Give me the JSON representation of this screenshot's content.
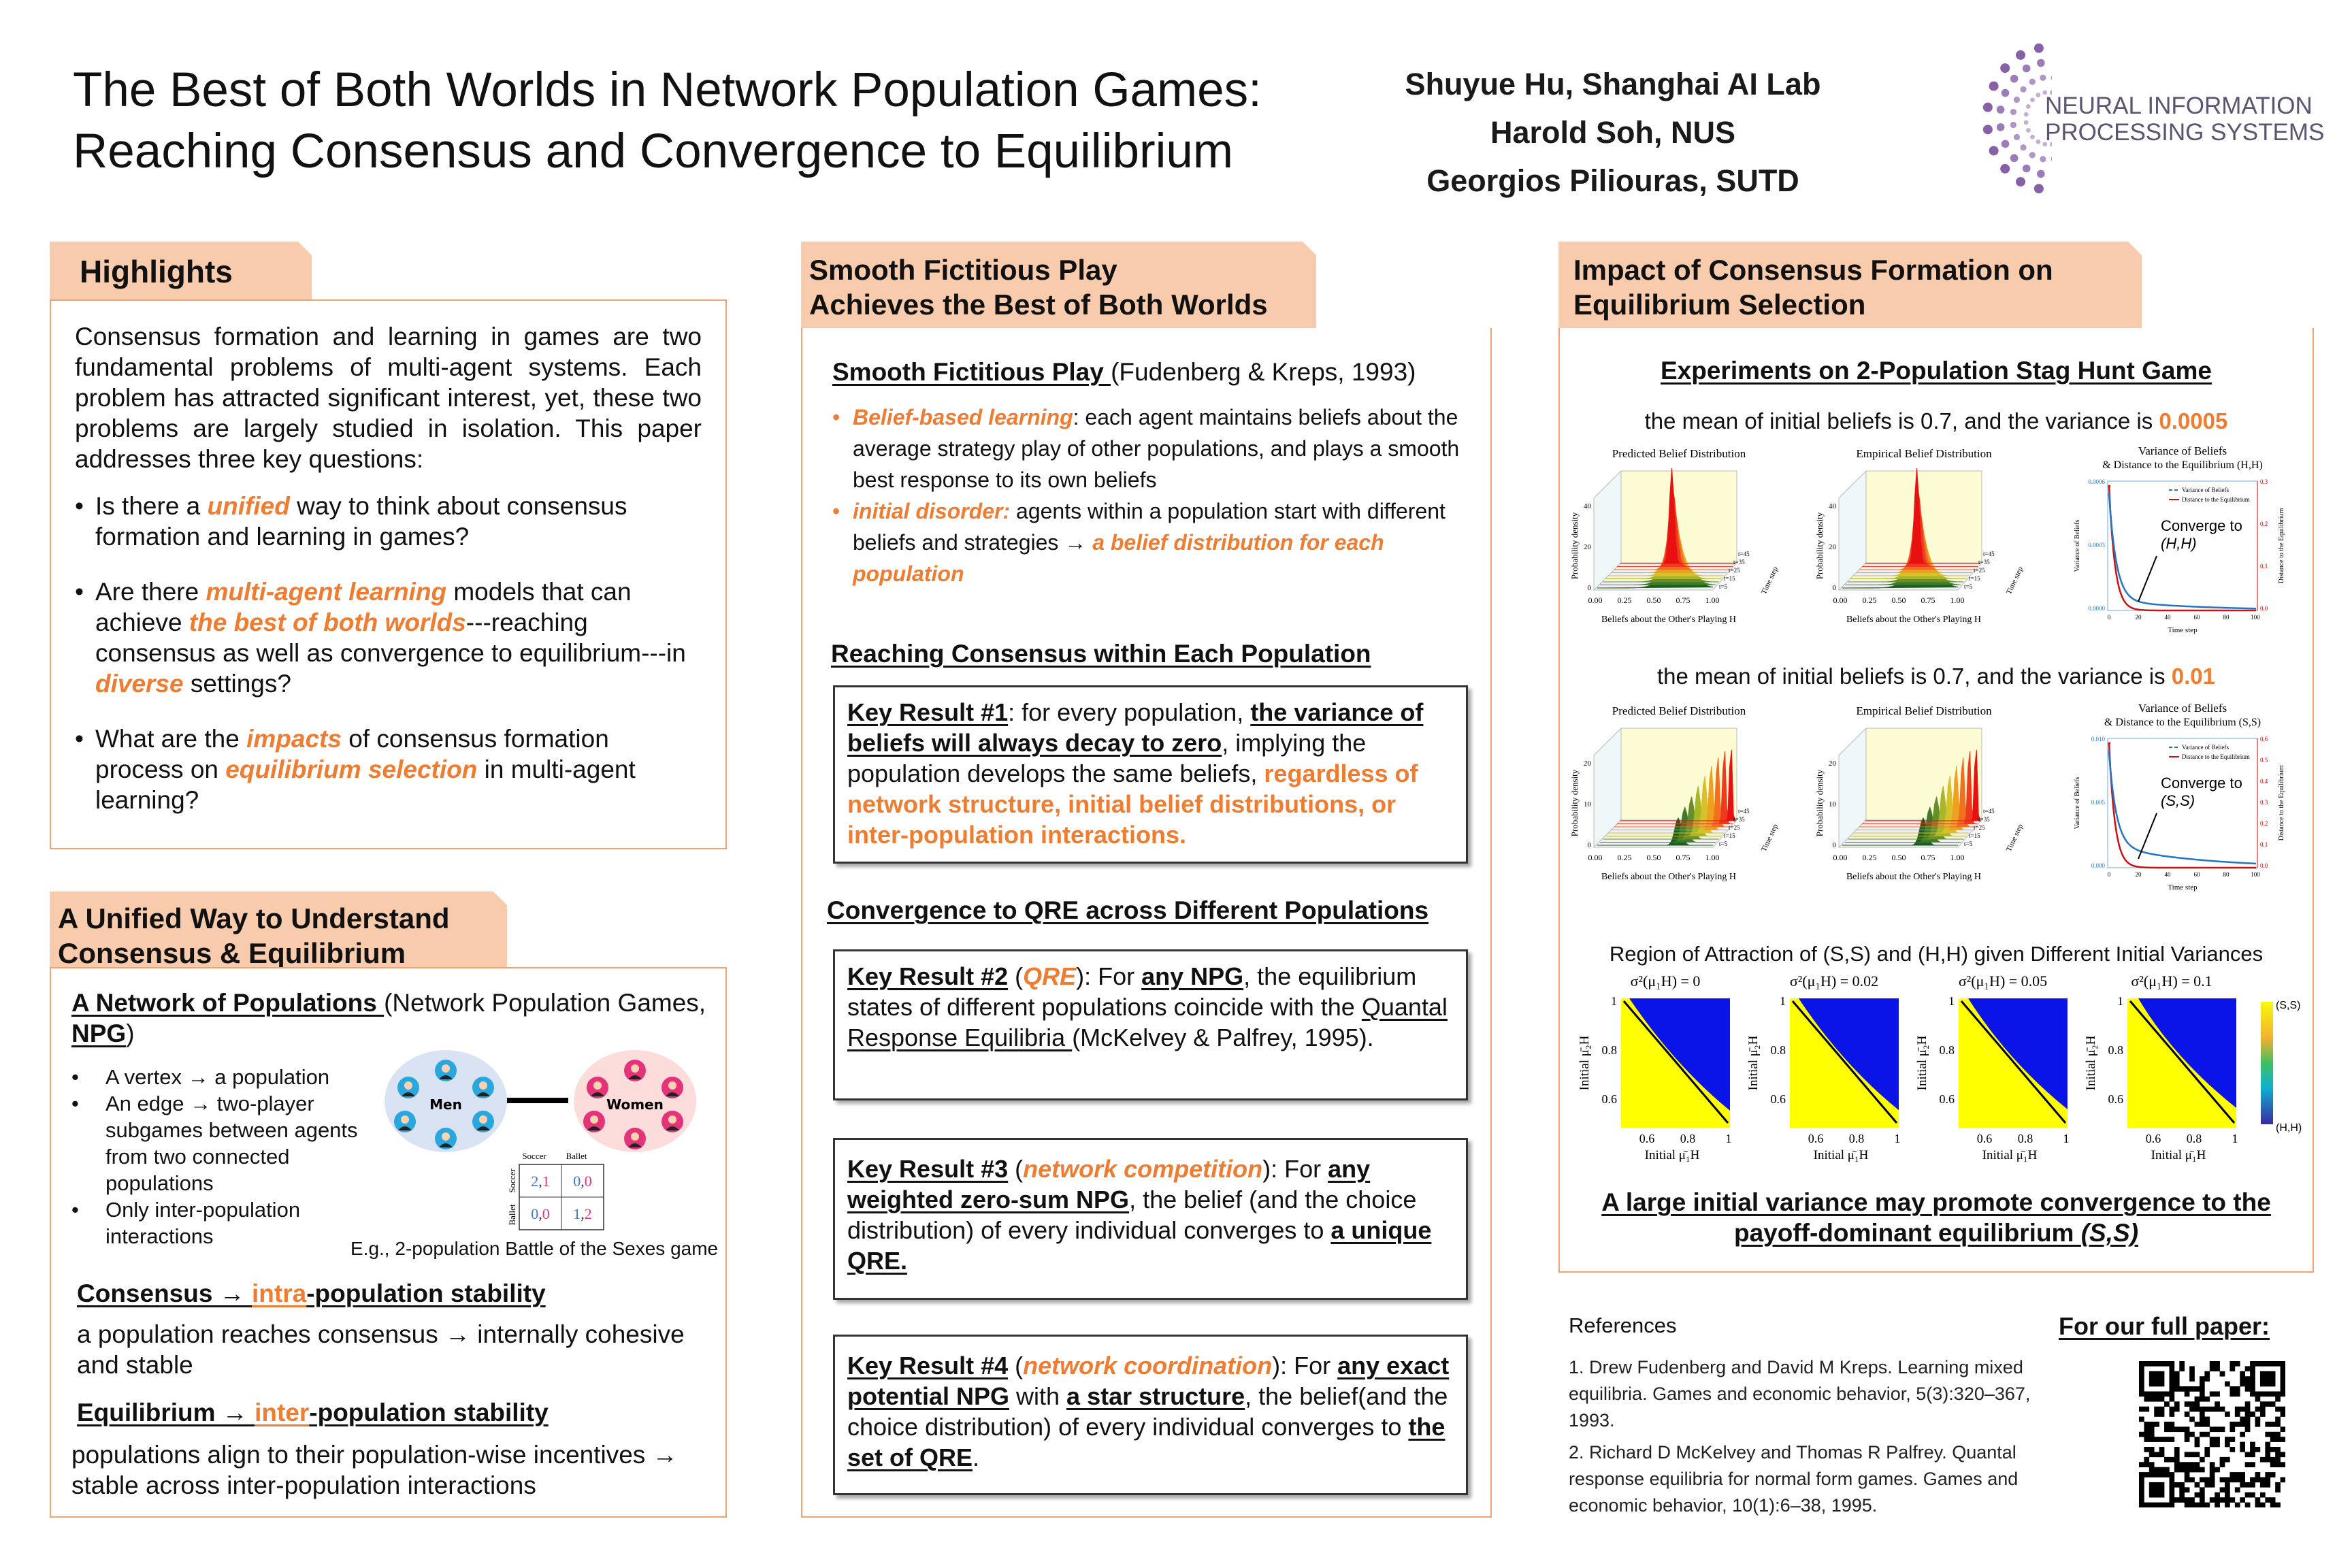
{
  "header": {
    "title_line1": "The Best of Both Worlds in Network Population Games:",
    "title_line2": "Reaching Consensus and Convergence to Equilibrium",
    "authors": [
      "Shuyue Hu, Shanghai AI Lab",
      "Harold Soh, NUS",
      "Georgios Piliouras, SUTD"
    ],
    "logo_line1": "NEURAL INFORMATION",
    "logo_line2": "PROCESSING SYSTEMS",
    "logo_color": "#7b4f9e"
  },
  "highlights": {
    "heading": "Highlights",
    "intro": "Consensus formation and learning in games are two fundamental problems of multi-agent systems. Each problem has attracted significant interest, yet, these two problems are largely studied in isolation. This paper addresses three key questions:",
    "q1": [
      {
        "t": "Is there a "
      },
      {
        "t": "unified",
        "s": "obi"
      },
      {
        "t": " way to think about consensus formation and learning in games?"
      }
    ],
    "q2": [
      {
        "t": "Are there "
      },
      {
        "t": "multi-agent learning",
        "s": "obi"
      },
      {
        "t": " models that can achieve "
      },
      {
        "t": "the best of both worlds",
        "s": "obi"
      },
      {
        "t": "---reaching consensus as well as convergence to equilibrium---in "
      },
      {
        "t": "diverse",
        "s": "obi"
      },
      {
        "t": " settings?"
      }
    ],
    "q3": [
      {
        "t": "What are the "
      },
      {
        "t": "impacts",
        "s": "obi"
      },
      {
        "t": " of consensus formation process on "
      },
      {
        "t": "equilibrium selection",
        "s": "obi"
      },
      {
        "t": " in multi-agent learning?"
      }
    ]
  },
  "unified": {
    "heading_line1": "A Unified Way to Understand",
    "heading_line2": "Consensus & Equilibrium",
    "npg_title": [
      {
        "t": "A Network of Populations ",
        "s": "bu"
      },
      {
        "t": "(Network Population Games, "
      },
      {
        "t": "NPG",
        "s": "bu"
      },
      {
        "t": ")"
      }
    ],
    "bullets": [
      "A vertex → a population",
      "An edge → two-player subgames between agents from two connected populations",
      "Only inter-population interactions"
    ],
    "diagram": {
      "men_label": "Men",
      "women_label": "Women",
      "col_labels": [
        "Soccer",
        "Ballet"
      ],
      "row_labels": [
        "Soccer",
        "Ballet"
      ],
      "cells": [
        [
          [
            "2",
            "1"
          ],
          [
            "0",
            "0"
          ]
        ],
        [
          [
            "0",
            "0"
          ],
          [
            "1",
            "2"
          ]
        ]
      ],
      "men_color": "#29a8e0",
      "women_color": "#e5337a",
      "caption": "E.g., 2-population Battle of the Sexes game"
    },
    "consensus_title": [
      {
        "t": "Consensus → ",
        "s": "bu"
      },
      {
        "t": "intra",
        "s": "obu"
      },
      {
        "t": "-population stability",
        "s": "bu"
      }
    ],
    "consensus_text": "a population reaches consensus → internally cohesive and stable",
    "equilibrium_title": [
      {
        "t": "Equilibrium → ",
        "s": "bu"
      },
      {
        "t": "inter",
        "s": "obu"
      },
      {
        "t": "-population stability",
        "s": "bu"
      }
    ],
    "equilibrium_text": "populations align to their population-wise incentives → stable across inter-population interactions"
  },
  "sfp": {
    "heading_line1": "Smooth Fictitious Play",
    "heading_line2": "Achieves the Best of Both Worlds",
    "sfp_title": [
      {
        "t": "Smooth Fictitious Play ",
        "s": "bu"
      },
      {
        "t": "(Fudenberg & Kreps, 1993)"
      }
    ],
    "b1": [
      {
        "t": "Belief-based learning",
        "s": "obi"
      },
      {
        "t": ":  each agent maintains beliefs about the average strategy play of other populations,  and plays a smooth best response to its own beliefs"
      }
    ],
    "b2": [
      {
        "t": "initial disorder:",
        "s": "obi"
      },
      {
        "t": " agents within a population start with different beliefs and strategies → "
      },
      {
        "t": "a belief distribution for each population",
        "s": "obi"
      }
    ],
    "consensus_heading": "Reaching Consensus within Each Population",
    "kr1": [
      {
        "t": "Key Result #1",
        "s": "bu"
      },
      {
        "t": ": for every population, "
      },
      {
        "t": "the variance of beliefs will always decay to zero",
        "s": "bu"
      },
      {
        "t": ", implying  the population develops the same beliefs, "
      },
      {
        "t": "regardless of network structure, initial belief distributions, or inter-population interactions.",
        "s": "ob"
      }
    ],
    "qre_heading": "Convergence to QRE across Different Populations",
    "kr2": [
      {
        "t": "Key Result #2",
        "s": "bu"
      },
      {
        "t": " ("
      },
      {
        "t": "QRE",
        "s": "obi"
      },
      {
        "t": "):  For "
      },
      {
        "t": "any NPG",
        "s": "bu"
      },
      {
        "t": ", the equilibrium states of different populations coincide with the "
      },
      {
        "t": "Quantal Response Equilibria ",
        "s": "u"
      },
      {
        "t": "(McKelvey & Palfrey, 1995)."
      }
    ],
    "kr3": [
      {
        "t": "Key Result #3",
        "s": "bu"
      },
      {
        "t": " ("
      },
      {
        "t": "network competition",
        "s": "obi"
      },
      {
        "t": "): For "
      },
      {
        "t": "any weighted zero-sum NPG",
        "s": "bu"
      },
      {
        "t": ",  the belief (and the choice distribution) of every individual converges to "
      },
      {
        "t": "a unique QRE.",
        "s": "bu"
      }
    ],
    "kr4": [
      {
        "t": "Key Result #4",
        "s": "bu"
      },
      {
        "t": " ("
      },
      {
        "t": "network coordination",
        "s": "obi"
      },
      {
        "t": "): For "
      },
      {
        "t": "any exact potential NPG",
        "s": "bu"
      },
      {
        "t": " with "
      },
      {
        "t": "a star structure",
        "s": "bu"
      },
      {
        "t": ",  the belief(and the choice distribution) of every individual converges to "
      },
      {
        "t": "the set of QRE",
        "s": "bu"
      },
      {
        "t": "."
      }
    ]
  },
  "impact": {
    "heading_line1": "Impact of Consensus Formation on",
    "heading_line2": "Equilibrium Selection",
    "exp_title": "Experiments on 2-Population Stag Hunt Game",
    "row1_caption": [
      {
        "t": "the mean of initial beliefs is 0.7, and the variance is "
      },
      {
        "t": "0.0005",
        "s": "ob"
      }
    ],
    "row2_caption": [
      {
        "t": "the mean of initial beliefs is 0.7, and the variance is "
      },
      {
        "t": "0.01",
        "s": "ob"
      }
    ],
    "dist_titles": [
      "Predicted Belief Distribution",
      "Empirical Belief Distribution"
    ],
    "dist_xlabel": "Beliefs about the Other's Playing H",
    "dist_ylabel": "Probability density",
    "dist_xticks": [
      "0.00",
      "0.25",
      "0.50",
      "0.75",
      "1.00"
    ],
    "time_ticks": [
      "t=5",
      "t=15",
      "t=25",
      "t=35",
      "t=45"
    ],
    "time_label": "Time step",
    "var_title1": "Variance of Beliefs",
    "var_title2_row1": "& Distance to the Equilibrium (H,H)",
    "var_title2_row2": "& Distance to the Equilibrium (S,S)",
    "legend": [
      "Variance of Beliefs",
      "Distance to the Equilibrium"
    ],
    "var_ylabel": "Variance of Beliefs",
    "dist_eq_label": "Distance to the Equilibrium",
    "var_xticks": [
      "0",
      "20",
      "40",
      "60",
      "80",
      "100"
    ],
    "row1_yticks": [
      "0.0006",
      "0.0003",
      "0.0000"
    ],
    "row1_y2ticks": [
      "0.3",
      "0.2",
      "0.1",
      "0.0"
    ],
    "row2_yticks": [
      "0.010",
      "0.005",
      "0.000"
    ],
    "row2_y2ticks": [
      "0.6",
      "0.5",
      "0.4",
      "0.3",
      "0.2",
      "0.1",
      "0.0"
    ],
    "row1_converge": [
      "Converge to",
      "(H,H)"
    ],
    "row2_converge": [
      "Converge to",
      "(S,S)"
    ],
    "row1_ydist_ticks": [
      "40",
      "20",
      "0"
    ],
    "row2_ydist_ticks": [
      "20",
      "10",
      "0"
    ],
    "roa_title": "Region of Attraction of (S,S) and (H,H) given Different Initial Variances",
    "roa_panels": [
      "σ²(μ₁H) = 0",
      "σ²(μ₁H) = 0.02",
      "σ²(μ₁H) = 0.05",
      "σ²(μ₁H) = 0.1"
    ],
    "roa_variances": [
      0,
      0.02,
      0.05,
      0.1
    ],
    "roa_yticks": [
      "1",
      "0.8",
      "0.6"
    ],
    "roa_xticks": [
      "0.6",
      "0.8",
      "1"
    ],
    "roa_ylabel": "Initial μ̄₂H",
    "roa_xlabel": "Initial μ̄₁H",
    "colorbar_labels": [
      "(S,S)",
      "(H,H)"
    ],
    "conclusion_line1": "A large initial variance may promote convergence to the",
    "conclusion_line2a": "payoff-dominant equilibrium ",
    "conclusion_line2b": "(S,S)"
  },
  "references": {
    "heading": "References",
    "items": [
      "1. Drew Fudenberg and David M Kreps. Learning mixed equilibria. Games and economic behavior, 5(3):320–367, 1993.",
      "2. Richard D McKelvey and Thomas R Palfrey. Quantal response equilibria for normal form games. Games and economic behavior, 10(1):6–38, 1995."
    ],
    "full_paper": "For our full paper:"
  }
}
